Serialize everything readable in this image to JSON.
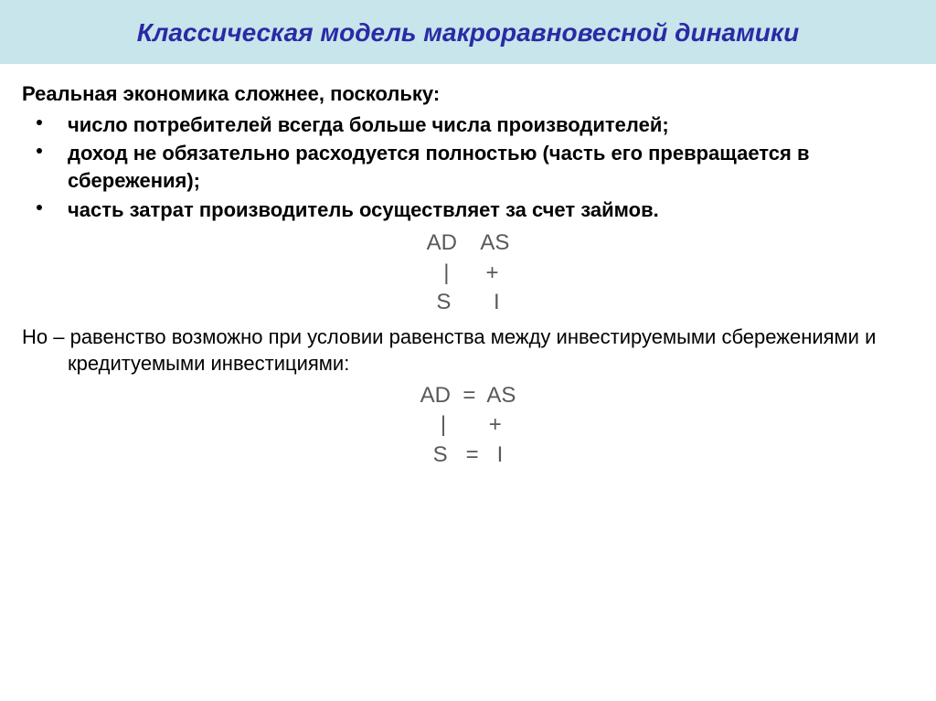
{
  "colors": {
    "title_bg": "#c8e5ec",
    "title_text": "#2a2aa5",
    "body_text": "#000000",
    "formula_text": "#595959",
    "page_bg": "#ffffff"
  },
  "title": "Классическая модель макроравновесной динамики",
  "lead": "Реальная экономика сложнее, поскольку:",
  "bullets": [
    "число потребителей всегда больше числа производителей;",
    "доход не обязательно расходуется полностью (часть его превращается в сбережения);",
    "часть затрат производитель осуществляет за счет займов."
  ],
  "formula1": {
    "l1": "AD    AS",
    "l2": " |      +",
    "l3": "S       I"
  },
  "para2": "Но – равенство возможно при условии равенства между инвестируемыми сбережениями и кредитуемыми инвестициями:",
  "formula2": {
    "l1": "AD  =  AS",
    "l2": " |       +",
    "l3": "S   =   I"
  }
}
